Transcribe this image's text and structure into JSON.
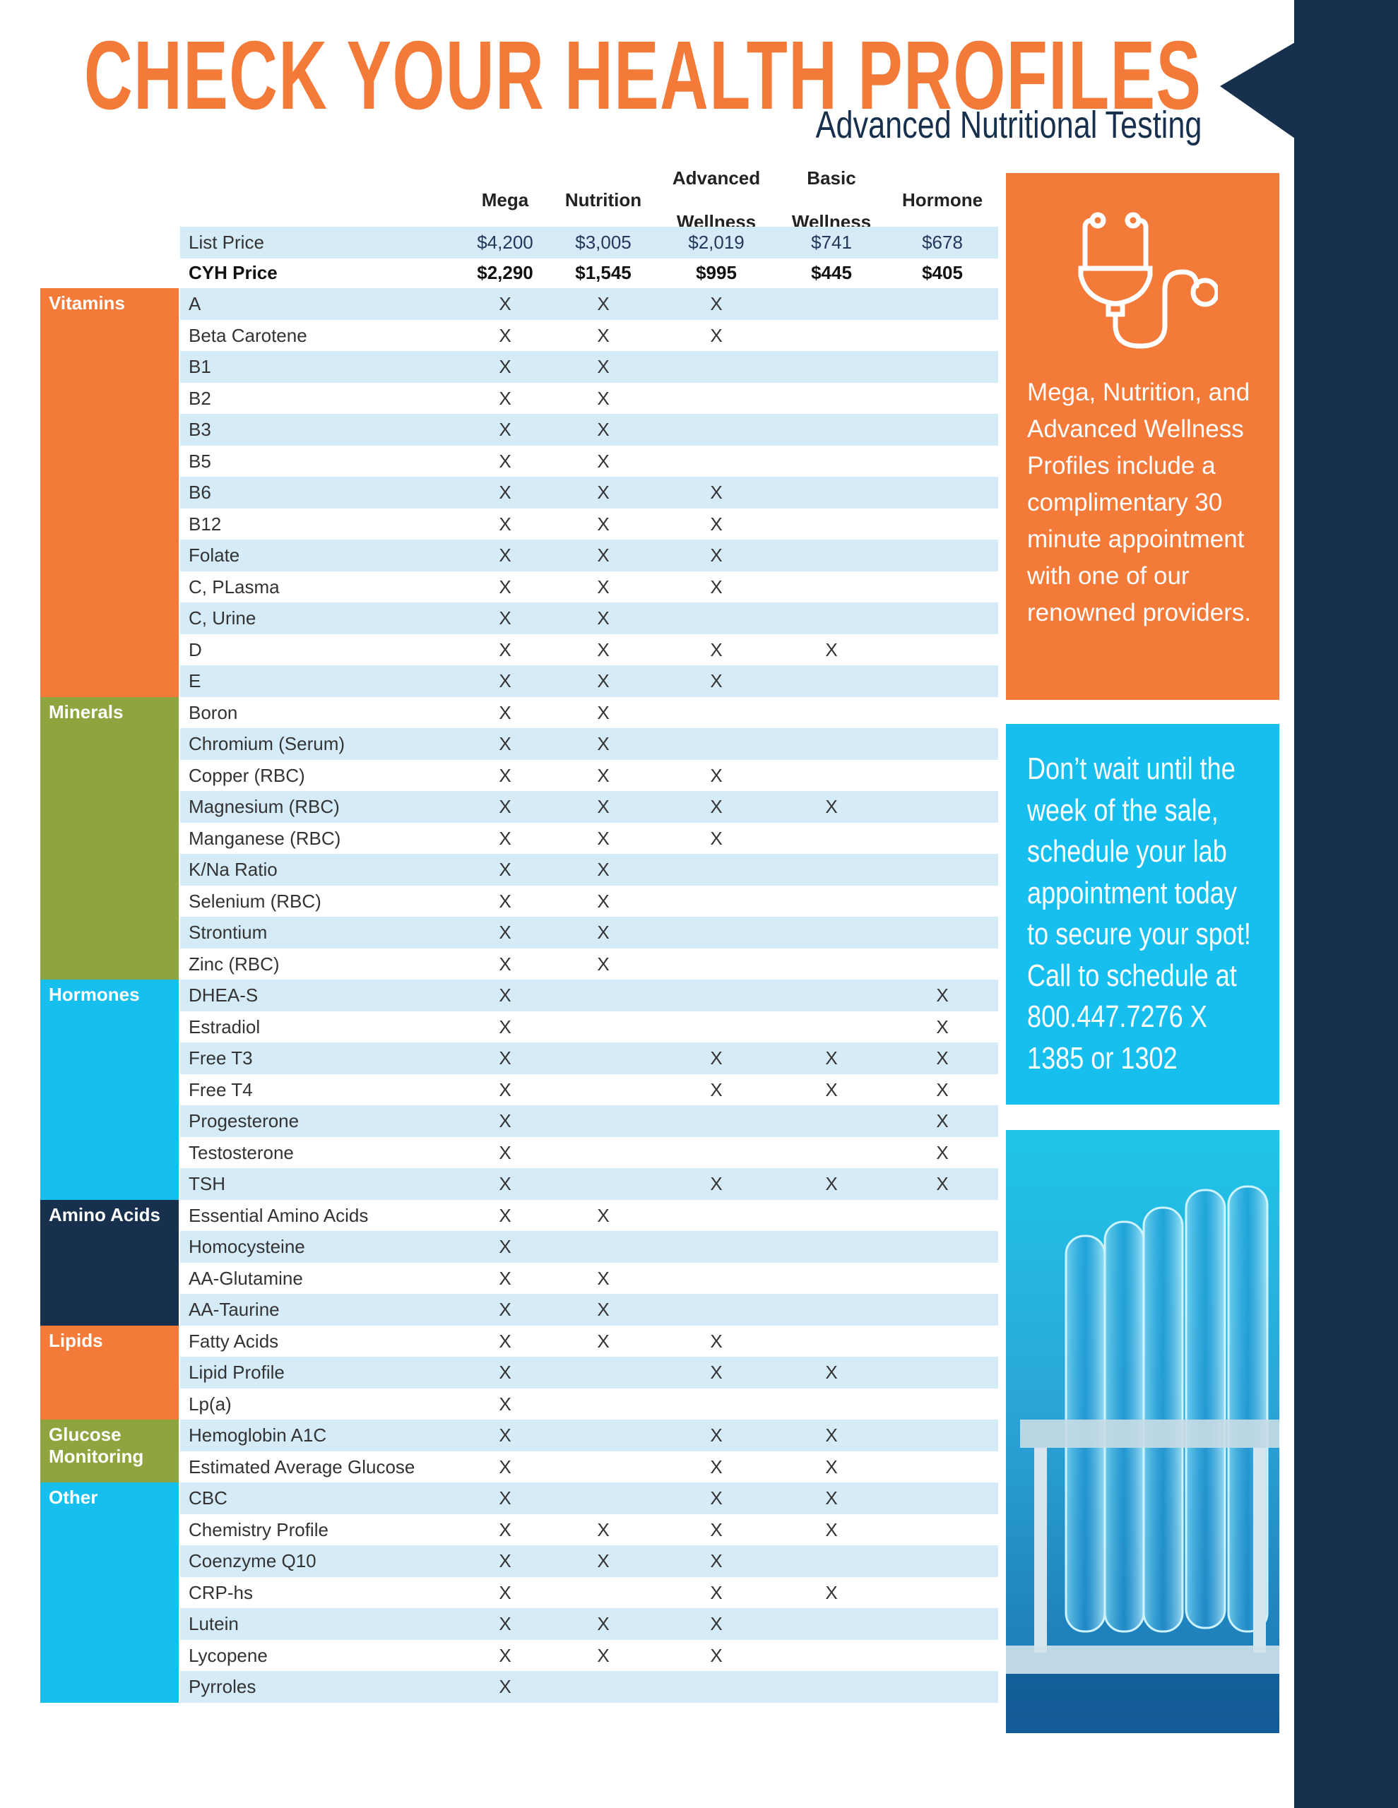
{
  "header": {
    "title": "CHECK YOUR HEALTH PROFILES",
    "subtitle": "Advanced Nutritional Testing"
  },
  "columns": [
    [
      "Mega"
    ],
    [
      "Nutrition"
    ],
    [
      "Advanced",
      "Wellness"
    ],
    [
      "Basic",
      "Wellness"
    ],
    [
      "Hormone"
    ]
  ],
  "list_price": {
    "label": "List Price",
    "values": [
      "$4,200",
      "$3,005",
      "$2,019",
      "$741",
      "$678"
    ]
  },
  "cyh_price": {
    "label": "CYH Price",
    "values": [
      "$2,290",
      "$1,545",
      "$995",
      "$445",
      "$405"
    ]
  },
  "categories": [
    {
      "name": "Vitamins",
      "color": "#f47a3a",
      "rows": [
        [
          "A",
          "XXX.."
        ],
        [
          "Beta Carotene",
          "XXX.."
        ],
        [
          "B1",
          "XX..."
        ],
        [
          "B2",
          "XX..."
        ],
        [
          "B3",
          "XX..."
        ],
        [
          "B5",
          "XX..."
        ],
        [
          "B6",
          "XXX.."
        ],
        [
          "B12",
          "XXX.."
        ],
        [
          "Folate",
          "XXX.."
        ],
        [
          "C, PLasma",
          "XXX.."
        ],
        [
          "C, Urine",
          "XX..."
        ],
        [
          "D",
          "XXXX."
        ],
        [
          "E",
          "XXX.."
        ]
      ]
    },
    {
      "name": "Minerals",
      "color": "#8da43f",
      "rows": [
        [
          "Boron",
          "XX..."
        ],
        [
          "Chromium (Serum)",
          "XX..."
        ],
        [
          "Copper (RBC)",
          "XXX.."
        ],
        [
          "Magnesium (RBC)",
          "XXXX."
        ],
        [
          "Manganese (RBC)",
          "XXX.."
        ],
        [
          "K/Na Ratio",
          "XX..."
        ],
        [
          "Selenium (RBC)",
          "XX..."
        ],
        [
          "Strontium",
          "XX..."
        ],
        [
          "Zinc (RBC)",
          "XX..."
        ]
      ]
    },
    {
      "name": "Hormones",
      "color": "#17bfef",
      "rows": [
        [
          "DHEA-S",
          "X...X"
        ],
        [
          "Estradiol",
          "X...X"
        ],
        [
          "Free T3",
          "X.XXX"
        ],
        [
          "Free T4",
          "X.XXX"
        ],
        [
          "Progesterone",
          "X...X"
        ],
        [
          "Testosterone",
          "X...X"
        ],
        [
          "TSH",
          "X.XXX"
        ]
      ]
    },
    {
      "name": "Amino Acids",
      "color": "#17304e",
      "rows": [
        [
          "Essential Amino Acids",
          "XX..."
        ],
        [
          "Homocysteine",
          "X...."
        ],
        [
          "AA-Glutamine",
          "XX..."
        ],
        [
          "AA-Taurine",
          "XX..."
        ]
      ]
    },
    {
      "name": "Lipids",
      "color": "#f47a3a",
      "rows": [
        [
          "Fatty Acids",
          "XXX.."
        ],
        [
          "Lipid Profile",
          "X.XX."
        ],
        [
          "Lp(a)",
          "X...."
        ]
      ]
    },
    {
      "name": "Glucose Monitoring",
      "color": "#8da43f",
      "rows": [
        [
          "Hemoglobin A1C",
          "X.XX."
        ],
        [
          "Estimated Average Glucose",
          "X.XX."
        ]
      ]
    },
    {
      "name": "Other",
      "color": "#17bfef",
      "rows": [
        [
          "CBC",
          "X.XX."
        ],
        [
          "Chemistry Profile",
          "XXXX."
        ],
        [
          "Coenzyme Q10",
          "XXX.."
        ],
        [
          "CRP-hs",
          "X.XX."
        ],
        [
          "Lutein",
          "XXX.."
        ],
        [
          "Lycopene",
          "XXX.."
        ],
        [
          "Pyrroles",
          "X...."
        ]
      ]
    }
  ],
  "mark": "X",
  "promo": {
    "lines": [
      "Mega, Nutrition, and",
      "Advanced Wellness",
      "Profiles include a",
      "complimentary 30",
      "minute appointment",
      "with one of our",
      "renowned providers."
    ]
  },
  "cta": {
    "lines": [
      "Don’t wait until the",
      "week of the sale,",
      "schedule your lab",
      "appointment today",
      "to secure your spot!",
      "Call to schedule at",
      "800.447.7276 X",
      "1385 or 1302"
    ]
  }
}
